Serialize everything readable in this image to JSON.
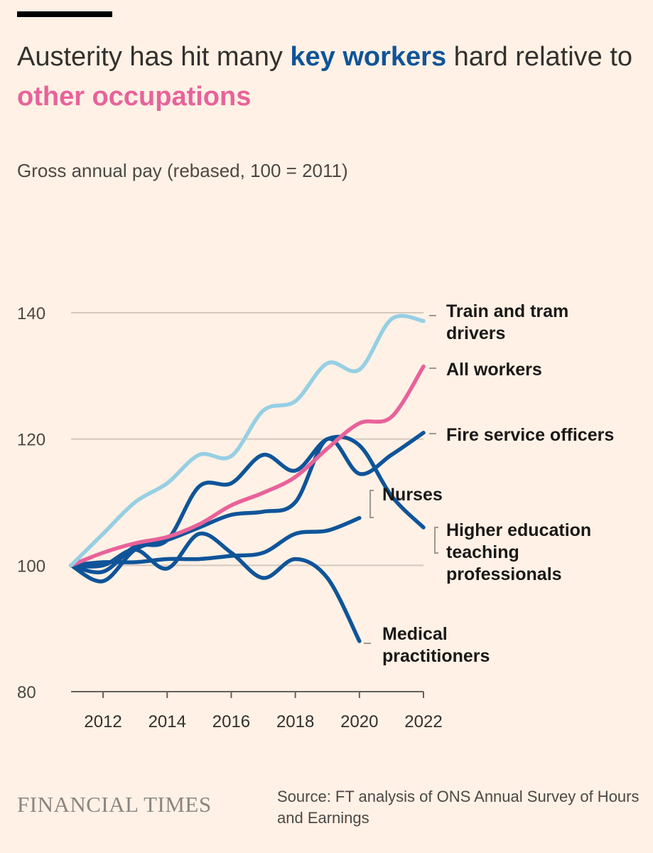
{
  "header": {
    "title_part1": "Austerity has hit many ",
    "title_key": "key workers",
    "title_part2": " hard relative to ",
    "title_other": "other occupations",
    "subtitle": "Gross annual pay (rebased, 100 = 2011)"
  },
  "footer": {
    "logo": "FINANCIAL TIMES",
    "source": "Source: FT analysis of ONS Annual Survey of Hours and Earnings"
  },
  "colors": {
    "background": "#fff1e5",
    "key_workers": "#0f5499",
    "other": "#e8629a",
    "train": "#96cfe4",
    "grid": "#d4c8bd"
  },
  "chart_data": {
    "type": "line",
    "title": "Austerity has hit many key workers hard relative to other occupations",
    "ylabel": "Gross annual pay (rebased, 100 = 2011)",
    "xlim": [
      2011,
      2022
    ],
    "ylim": [
      80,
      140
    ],
    "yticks": [
      80,
      100,
      120,
      140
    ],
    "xticks": [
      2012,
      2014,
      2016,
      2018,
      2020,
      2022
    ],
    "grid": true,
    "x": [
      2011,
      2012,
      2013,
      2014,
      2015,
      2016,
      2017,
      2018,
      2019,
      2020,
      2021,
      2022
    ],
    "series": [
      {
        "name": "Train and tram drivers",
        "label_lines": [
          "Train and tram",
          "drivers"
        ],
        "color": "#96cfe4",
        "values": [
          100,
          105,
          110,
          113,
          117.5,
          117.3,
          124.5,
          126,
          132,
          131,
          139,
          138.7
        ]
      },
      {
        "name": "All workers",
        "label_lines": [
          "All workers"
        ],
        "color": "#e8629a",
        "values": [
          100,
          102,
          103.5,
          104.5,
          106.5,
          109.5,
          111.5,
          114,
          118.5,
          122.5,
          123.5,
          131.5
        ]
      },
      {
        "name": "Fire service officers",
        "label_lines": [
          "Fire service officers"
        ],
        "color": "#0f5499",
        "values": [
          100,
          97.5,
          102.5,
          104,
          106,
          108,
          108.5,
          110,
          120,
          114.5,
          117.5,
          121
        ]
      },
      {
        "name": "Nurses",
        "label_lines": [
          "Nurses"
        ],
        "color": "#0f5499",
        "values": [
          100,
          100.5,
          100.5,
          101,
          101,
          101.5,
          102,
          105,
          105.5,
          107.5,
          null,
          null
        ]
      },
      {
        "name": "Higher education teaching professionals",
        "label_lines": [
          "Higher education",
          "teaching",
          "professionals"
        ],
        "color": "#0f5499",
        "values": [
          100,
          99,
          103,
          104,
          112.5,
          113,
          117.5,
          115,
          120,
          119,
          111,
          106
        ]
      },
      {
        "name": "Medical practitioners",
        "label_lines": [
          "Medical",
          "practitioners"
        ],
        "color": "#0f5499",
        "values": [
          100,
          100,
          102.5,
          99.5,
          105,
          102,
          98,
          101,
          98,
          88,
          null,
          null
        ]
      }
    ]
  }
}
